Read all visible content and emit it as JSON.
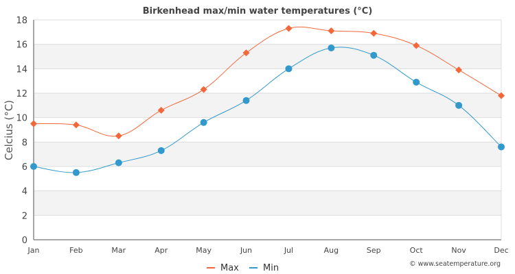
{
  "chart_data": {
    "type": "line",
    "title": "Birkenhead max/min water temperatures (°C)",
    "xlabel": "",
    "ylabel": "Celcius (°C)",
    "categories": [
      "Jan",
      "Feb",
      "Mar",
      "Apr",
      "May",
      "Jun",
      "Jul",
      "Aug",
      "Sep",
      "Oct",
      "Nov",
      "Dec"
    ],
    "ylim": [
      0,
      18
    ],
    "yticks": [
      0,
      2,
      4,
      6,
      8,
      10,
      12,
      14,
      16,
      18
    ],
    "grid": true,
    "legend_position": "bottom-center",
    "series": [
      {
        "name": "Max",
        "color": "#f4673a",
        "marker": "diamond",
        "values": [
          9.5,
          9.4,
          8.5,
          10.6,
          12.3,
          15.3,
          17.3,
          17.1,
          16.9,
          15.9,
          13.9,
          11.8
        ]
      },
      {
        "name": "Min",
        "color": "#3399cc",
        "marker": "circle",
        "values": [
          6.0,
          5.5,
          6.3,
          7.3,
          9.6,
          11.4,
          14.0,
          15.7,
          15.1,
          12.9,
          11.0,
          7.6
        ]
      }
    ],
    "credit": "© www.seatemperature.org"
  }
}
